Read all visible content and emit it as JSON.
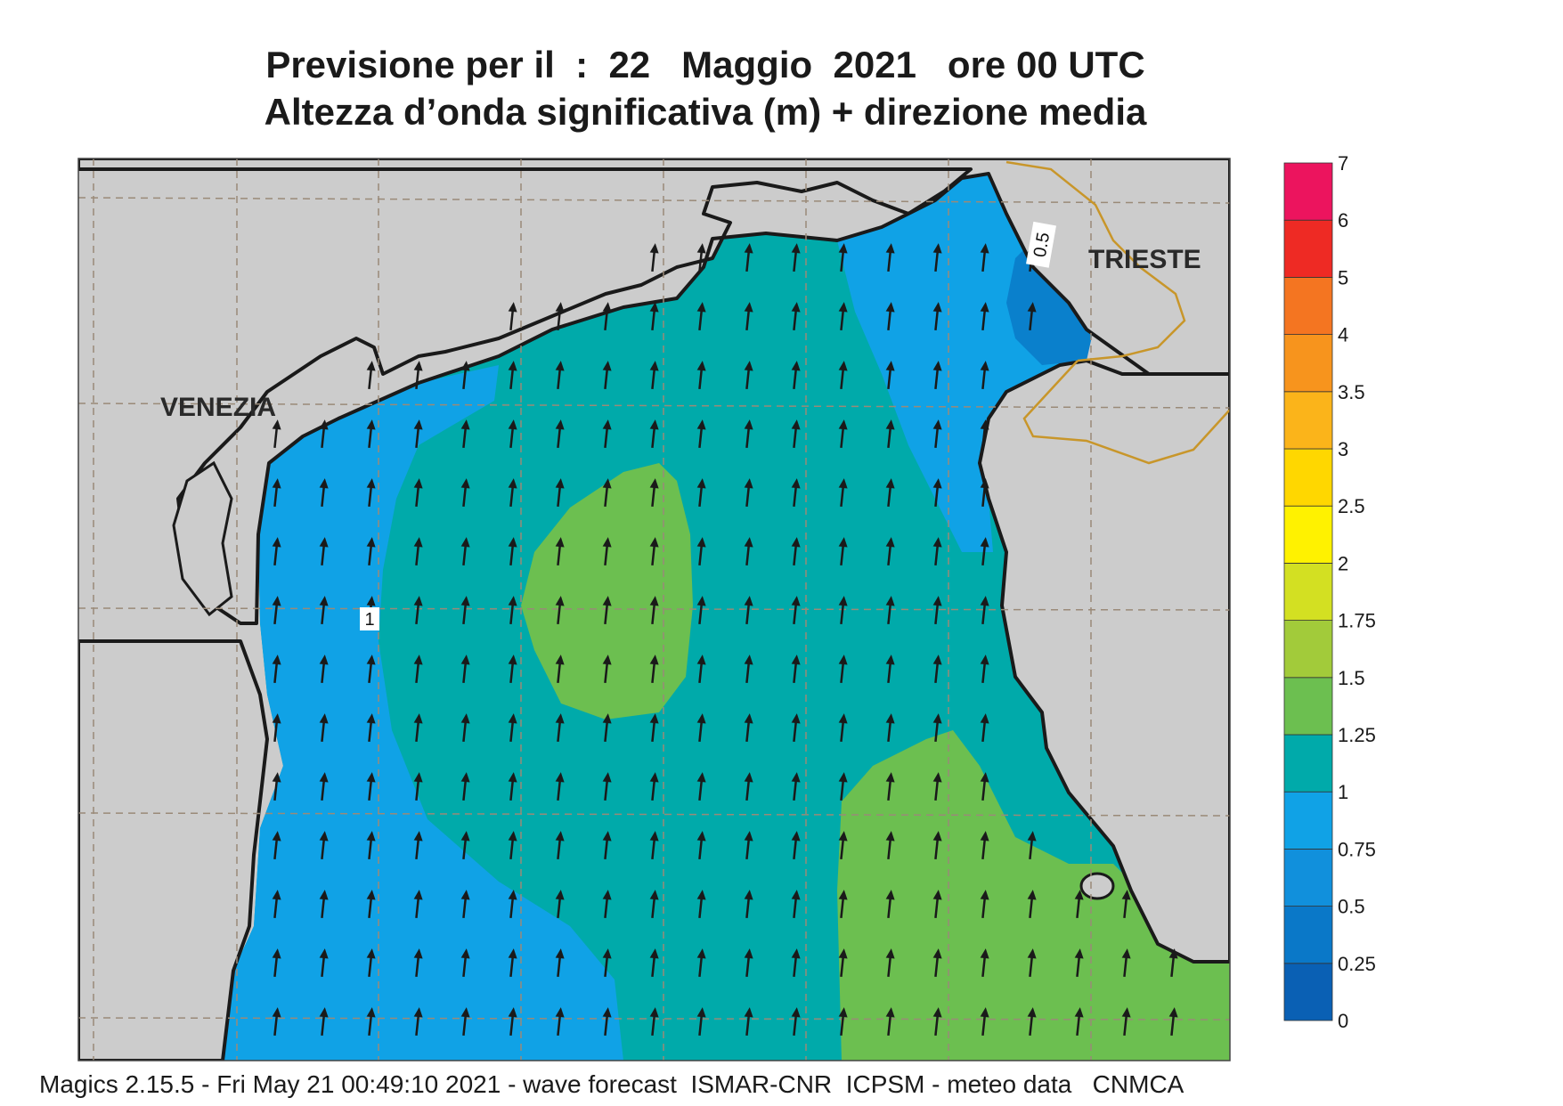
{
  "title": {
    "line1": "Previsione per il  :  22   Maggio  2021   ore 00 UTC",
    "line2": "Altezza d’onda significativa (m) + direzione media"
  },
  "footer": "Magics 2.15.5 - Fri May 21 00:49:10 2021 - wave forecast  ISMAR-CNR  ICPSM - meteo data   CNMCA",
  "map": {
    "cities": [
      {
        "name": "VENEZIA"
      },
      {
        "name": "TRIESTE"
      }
    ],
    "contour_labels": [
      "1",
      "0.5"
    ],
    "wave_direction": "north-northeast",
    "colors": {
      "land": "#cccccc",
      "coast": "#1a1a1a",
      "border": "#c8962a",
      "grid": "#9a8a78",
      "arrow": "#1a1a1a"
    }
  },
  "colorbar": {
    "levels": [
      "0",
      "0.25",
      "0.5",
      "0.75",
      "1",
      "1.25",
      "1.5",
      "1.75",
      "2",
      "2.5",
      "3",
      "3.5",
      "4",
      "5",
      "6",
      "7"
    ],
    "colors": [
      "#0a60b4",
      "#0a78c8",
      "#1190dc",
      "#10a2e6",
      "#00aaaa",
      "#6cbf50",
      "#a2cb3a",
      "#d3e022",
      "#fff200",
      "#ffd700",
      "#fbb41a",
      "#f7941d",
      "#f47521",
      "#ee2a24",
      "#ec145e"
    ]
  }
}
